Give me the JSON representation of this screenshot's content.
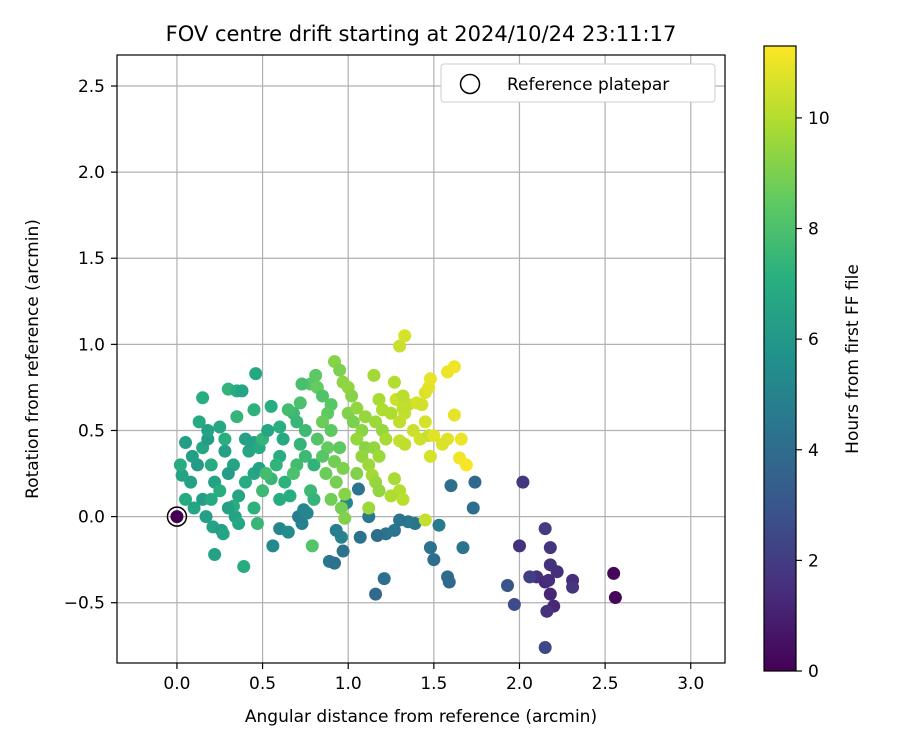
{
  "chart_data": {
    "type": "scatter",
    "title": "FOV centre drift starting at 2024/10/24 23:11:17",
    "xlabel": "Angular distance from reference (arcmin)",
    "ylabel": "Rotation from reference (arcmin)",
    "colorbar_label": "Hours from first FF file",
    "xlim": [
      -0.35,
      3.2
    ],
    "ylim": [
      -0.85,
      2.68
    ],
    "clim": [
      0,
      11.3
    ],
    "x_ticks": [
      "0.0",
      "0.5",
      "1.0",
      "1.5",
      "2.0",
      "2.5",
      "3.0"
    ],
    "y_ticks": [
      "−0.5",
      "0.0",
      "0.5",
      "1.0",
      "1.5",
      "2.0",
      "2.5"
    ],
    "colorbar_ticks": [
      "0",
      "2",
      "4",
      "6",
      "8",
      "10"
    ],
    "grid": true,
    "legend": {
      "placement": "top-right",
      "entries": [
        "Reference platepar"
      ]
    },
    "reference_point": {
      "x": 0.0,
      "y": 0.0
    },
    "points_xyc": [
      [
        0.0,
        0.0,
        0.0
      ],
      [
        2.55,
        -0.33,
        0.2
      ],
      [
        2.56,
        -0.47,
        0.2
      ],
      [
        2.02,
        0.2,
        1.8
      ],
      [
        2.15,
        -0.07,
        2.0
      ],
      [
        2.18,
        -0.18,
        1.7
      ],
      [
        2.0,
        -0.17,
        1.6
      ],
      [
        2.1,
        -0.35,
        1.5
      ],
      [
        2.18,
        -0.28,
        1.6
      ],
      [
        2.22,
        -0.32,
        1.5
      ],
      [
        2.15,
        -0.38,
        1.3
      ],
      [
        2.17,
        -0.37,
        1.4
      ],
      [
        2.18,
        -0.45,
        1.2
      ],
      [
        2.2,
        -0.52,
        1.3
      ],
      [
        2.16,
        -0.55,
        1.6
      ],
      [
        2.31,
        -0.37,
        1.4
      ],
      [
        2.31,
        -0.41,
        1.7
      ],
      [
        2.15,
        -0.76,
        2.4
      ],
      [
        1.93,
        -0.4,
        3.0
      ],
      [
        1.97,
        -0.51,
        2.6
      ],
      [
        2.06,
        -0.35,
        2.1
      ],
      [
        1.6,
        0.18,
        4.0
      ],
      [
        1.74,
        0.2,
        3.8
      ],
      [
        1.73,
        0.05,
        4.1
      ],
      [
        1.67,
        -0.18,
        4.3
      ],
      [
        1.58,
        -0.35,
        4.0
      ],
      [
        1.59,
        -0.38,
        3.8
      ],
      [
        1.48,
        -0.18,
        4.2
      ],
      [
        1.5,
        -0.25,
        4.0
      ],
      [
        1.53,
        -0.05,
        4.6
      ],
      [
        1.39,
        -0.04,
        4.3
      ],
      [
        1.35,
        -0.03,
        4.5
      ],
      [
        1.3,
        -0.02,
        4.2
      ],
      [
        1.22,
        -0.1,
        4.3
      ],
      [
        1.27,
        -0.08,
        4.4
      ],
      [
        1.12,
        0.0,
        4.5
      ],
      [
        1.06,
        0.16,
        4.3
      ],
      [
        1.17,
        -0.11,
        4.0
      ],
      [
        1.07,
        -0.12,
        4.2
      ],
      [
        0.97,
        -0.2,
        4.3
      ],
      [
        0.89,
        -0.26,
        4.5
      ],
      [
        0.92,
        -0.27,
        4.2
      ],
      [
        1.21,
        -0.36,
        4.1
      ],
      [
        1.16,
        -0.45,
        3.8
      ],
      [
        0.96,
        -0.12,
        5.0
      ],
      [
        0.73,
        -0.04,
        5.0
      ],
      [
        0.71,
        0.0,
        4.8
      ],
      [
        0.74,
        0.04,
        5.1
      ],
      [
        0.76,
        0.02,
        5.2
      ],
      [
        0.6,
        -0.07,
        5.2
      ],
      [
        0.65,
        -0.09,
        5.4
      ],
      [
        0.56,
        -0.17,
        5.3
      ],
      [
        0.93,
        -0.08,
        4.8
      ],
      [
        0.99,
        0.08,
        5.3
      ],
      [
        0.03,
        0.24,
        6.5
      ],
      [
        0.09,
        0.35,
        6.4
      ],
      [
        0.15,
        0.4,
        6.6
      ],
      [
        0.18,
        0.45,
        6.2
      ],
      [
        0.05,
        0.43,
        6.3
      ],
      [
        0.13,
        0.55,
        6.8
      ],
      [
        0.18,
        0.5,
        6.5
      ],
      [
        0.25,
        0.52,
        6.7
      ],
      [
        0.28,
        0.38,
        6.4
      ],
      [
        0.33,
        0.3,
        6.6
      ],
      [
        0.3,
        0.25,
        6.2
      ],
      [
        0.22,
        0.2,
        6.5
      ],
      [
        0.15,
        0.1,
        6.3
      ],
      [
        0.1,
        0.05,
        6.6
      ],
      [
        0.05,
        0.1,
        6.8
      ],
      [
        0.02,
        0.3,
        6.9
      ],
      [
        0.15,
        0.69,
        7.0
      ],
      [
        0.17,
        0.0,
        6.4
      ],
      [
        0.21,
        -0.06,
        6.5
      ],
      [
        0.26,
        -0.08,
        6.3
      ],
      [
        0.27,
        -0.1,
        6.6
      ],
      [
        0.34,
        0.0,
        6.5
      ],
      [
        0.36,
        -0.04,
        6.7
      ],
      [
        0.39,
        -0.29,
        6.9
      ],
      [
        0.22,
        -0.22,
        6.5
      ],
      [
        0.3,
        0.74,
        7.3
      ],
      [
        0.35,
        0.73,
        7.0
      ],
      [
        0.38,
        0.73,
        6.6
      ],
      [
        0.45,
        0.62,
        7.2
      ],
      [
        0.46,
        0.83,
        6.7
      ],
      [
        0.35,
        0.58,
        7.4
      ],
      [
        0.4,
        0.45,
        6.4
      ],
      [
        0.42,
        0.38,
        6.6
      ],
      [
        0.45,
        0.43,
        6.5
      ],
      [
        0.48,
        0.4,
        6.8
      ],
      [
        0.5,
        0.45,
        7.4
      ],
      [
        0.45,
        0.25,
        6.7
      ],
      [
        0.48,
        0.28,
        6.5
      ],
      [
        0.4,
        0.2,
        6.9
      ],
      [
        0.36,
        0.12,
        6.6
      ],
      [
        0.33,
        0.06,
        7.0
      ],
      [
        0.2,
        0.1,
        6.8
      ],
      [
        0.25,
        0.15,
        7.0
      ],
      [
        0.3,
        0.05,
        6.4
      ],
      [
        0.12,
        0.3,
        6.2
      ],
      [
        0.08,
        0.2,
        6.5
      ],
      [
        0.2,
        0.3,
        6.9
      ],
      [
        0.28,
        0.45,
        7.1
      ],
      [
        0.45,
        0.05,
        7.2
      ],
      [
        0.47,
        -0.04,
        7.5
      ],
      [
        0.55,
        0.64,
        7.0
      ],
      [
        0.53,
        0.5,
        6.6
      ],
      [
        0.6,
        0.52,
        7.1
      ],
      [
        0.62,
        0.45,
        6.8
      ],
      [
        0.6,
        0.35,
        7.0
      ],
      [
        0.58,
        0.3,
        7.3
      ],
      [
        0.55,
        0.22,
        7.5
      ],
      [
        0.63,
        0.2,
        7.2
      ],
      [
        0.66,
        0.12,
        7.0
      ],
      [
        0.6,
        0.1,
        6.9
      ],
      [
        0.5,
        0.15,
        7.6
      ],
      [
        0.52,
        0.25,
        7.8
      ],
      [
        0.68,
        0.6,
        7.6
      ],
      [
        0.65,
        0.62,
        7.8
      ],
      [
        0.72,
        0.66,
        8.0
      ],
      [
        0.7,
        0.55,
        7.5
      ],
      [
        0.75,
        0.5,
        7.7
      ],
      [
        0.72,
        0.42,
        7.4
      ],
      [
        0.75,
        0.35,
        7.6
      ],
      [
        0.7,
        0.3,
        7.8
      ],
      [
        0.68,
        0.25,
        8.0
      ],
      [
        0.8,
        0.3,
        7.3
      ],
      [
        0.78,
        0.15,
        7.6
      ],
      [
        0.8,
        0.1,
        7.4
      ],
      [
        0.79,
        -0.17,
        8.2
      ],
      [
        0.78,
        0.77,
        8.3
      ],
      [
        0.73,
        0.77,
        7.9
      ],
      [
        0.81,
        0.82,
        8.4
      ],
      [
        0.82,
        0.75,
        8.6
      ],
      [
        0.85,
        0.7,
        8.1
      ],
      [
        0.9,
        0.65,
        8.3
      ],
      [
        0.88,
        0.6,
        8.5
      ],
      [
        0.85,
        0.55,
        8.7
      ],
      [
        0.9,
        0.5,
        8.4
      ],
      [
        0.82,
        0.45,
        8.2
      ],
      [
        0.88,
        0.4,
        8.6
      ],
      [
        0.85,
        0.35,
        8.3
      ],
      [
        0.92,
        0.32,
        8.8
      ],
      [
        0.95,
        0.4,
        8.5
      ],
      [
        0.97,
        0.28,
        9.0
      ],
      [
        0.87,
        0.25,
        8.7
      ],
      [
        0.93,
        0.2,
        8.9
      ],
      [
        0.98,
        0.13,
        9.2
      ],
      [
        0.9,
        0.1,
        8.8
      ],
      [
        0.96,
        0.05,
        8.9
      ],
      [
        0.98,
        -0.01,
        9.1
      ],
      [
        0.92,
        0.9,
        9.2
      ],
      [
        0.95,
        0.85,
        9.0
      ],
      [
        0.97,
        0.78,
        9.3
      ],
      [
        1.0,
        0.75,
        9.4
      ],
      [
        1.02,
        0.7,
        9.2
      ],
      [
        1.0,
        0.6,
        9.1
      ],
      [
        1.05,
        0.63,
        9.4
      ],
      [
        1.03,
        0.55,
        9.0
      ],
      [
        1.08,
        0.5,
        9.3
      ],
      [
        1.05,
        0.45,
        9.5
      ],
      [
        1.1,
        0.4,
        9.2
      ],
      [
        1.08,
        0.35,
        9.4
      ],
      [
        1.12,
        0.3,
        9.6
      ],
      [
        1.05,
        0.25,
        9.1
      ],
      [
        1.14,
        0.24,
        9.7
      ],
      [
        1.16,
        0.2,
        9.5
      ],
      [
        1.18,
        0.15,
        9.4
      ],
      [
        1.12,
        0.05,
        9.6
      ],
      [
        1.15,
        0.82,
        9.7
      ],
      [
        1.18,
        0.68,
        9.8
      ],
      [
        1.2,
        0.62,
        9.9
      ],
      [
        1.16,
        0.55,
        9.6
      ],
      [
        1.2,
        0.5,
        9.5
      ],
      [
        1.22,
        0.45,
        9.8
      ],
      [
        1.15,
        0.4,
        9.4
      ],
      [
        1.18,
        0.35,
        9.6
      ],
      [
        1.27,
        0.78,
        10.0
      ],
      [
        1.25,
        0.6,
        9.9
      ],
      [
        1.27,
        0.22,
        9.8
      ],
      [
        1.3,
        0.15,
        10.0
      ],
      [
        1.25,
        0.12,
        9.9
      ],
      [
        1.32,
        0.1,
        10.1
      ],
      [
        1.3,
        0.55,
        10.2
      ],
      [
        1.33,
        0.6,
        10.3
      ],
      [
        1.35,
        0.65,
        10.2
      ],
      [
        1.28,
        0.68,
        10.4
      ],
      [
        1.32,
        0.7,
        10.1
      ],
      [
        1.3,
        0.44,
        10.3
      ],
      [
        1.33,
        0.42,
        10.2
      ],
      [
        1.38,
        0.5,
        10.4
      ],
      [
        1.4,
        0.66,
        10.6
      ],
      [
        1.43,
        0.65,
        10.5
      ],
      [
        1.45,
        0.72,
        10.7
      ],
      [
        1.47,
        0.75,
        10.8
      ],
      [
        1.48,
        0.8,
        10.9
      ],
      [
        1.45,
        0.55,
        10.6
      ],
      [
        1.42,
        0.45,
        10.5
      ],
      [
        1.47,
        0.47,
        10.4
      ],
      [
        1.5,
        0.47,
        10.8
      ],
      [
        1.48,
        0.35,
        10.6
      ],
      [
        1.45,
        -0.02,
        10.3
      ],
      [
        1.3,
        0.99,
        10.4
      ],
      [
        1.33,
        1.05,
        10.6
      ],
      [
        1.58,
        0.84,
        11.0
      ],
      [
        1.62,
        0.87,
        11.1
      ],
      [
        1.62,
        0.59,
        10.9
      ],
      [
        1.65,
        0.34,
        11.1
      ],
      [
        1.69,
        0.3,
        11.2
      ],
      [
        1.66,
        0.45,
        11.0
      ],
      [
        1.58,
        0.45,
        10.8
      ],
      [
        1.55,
        0.42,
        10.7
      ],
      [
        1.32,
        0.63,
        10.2
      ],
      [
        1.1,
        0.58,
        9.5
      ]
    ]
  }
}
